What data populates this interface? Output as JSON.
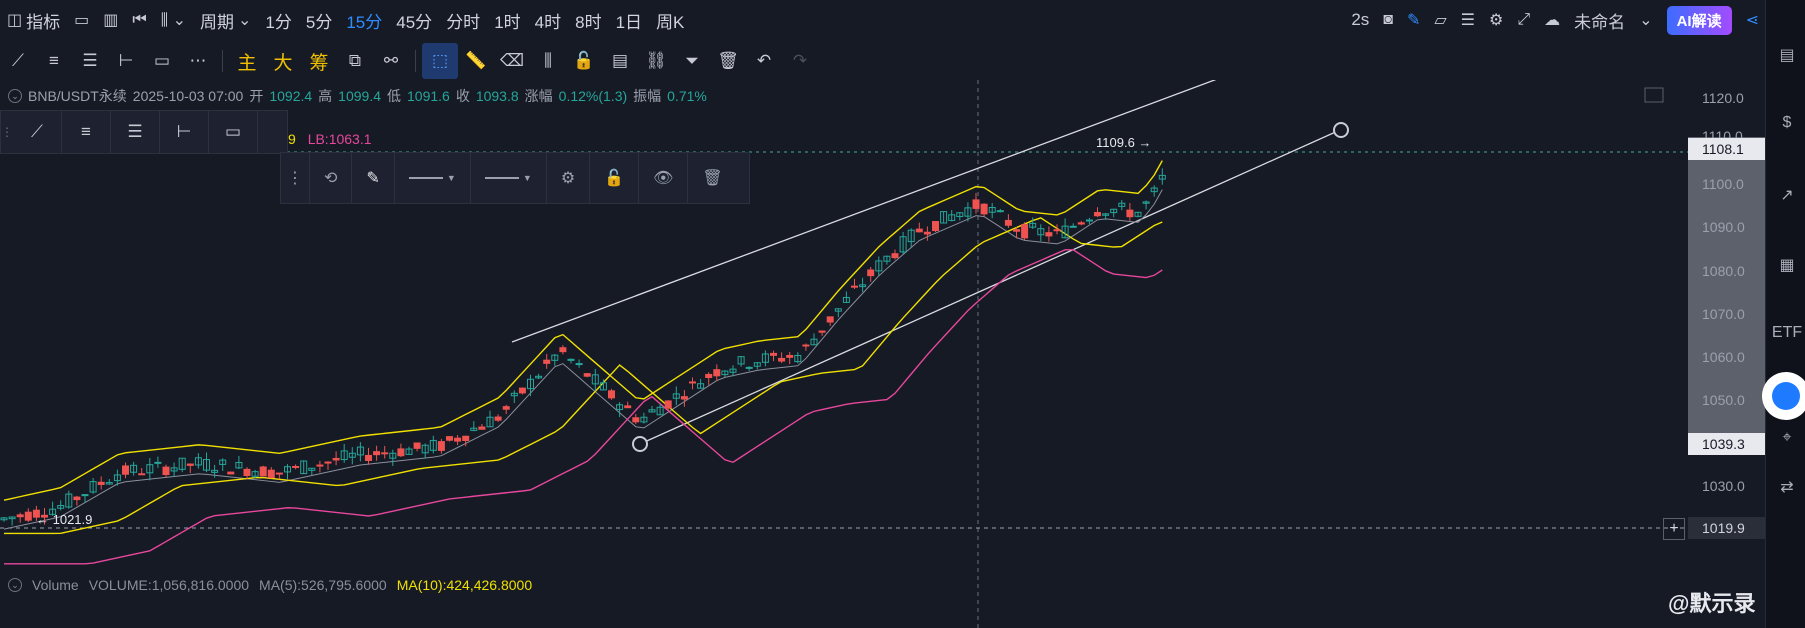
{
  "topbar": {
    "indicators_label": "指标",
    "period_label": "周期",
    "intervals": [
      "1分",
      "5分",
      "15分",
      "45分",
      "分时",
      "1时",
      "4时",
      "8时",
      "1日",
      "周K"
    ],
    "active_interval": "15分",
    "refresh": "2s",
    "layout_name": "未命名",
    "ai_button": "AI解读"
  },
  "drawbar": {
    "main": "主",
    "big": "大",
    "chip": "筹"
  },
  "legend": {
    "symbol": "BNB/USDT永续",
    "datetime": "2025-10-03 07:00",
    "open_label": "开",
    "open": "1092.4",
    "high_label": "高",
    "high": "1099.4",
    "low_label": "低",
    "low": "1091.6",
    "close_label": "收",
    "close": "1093.8",
    "change_label": "涨幅",
    "change": "0.12%(1.3)",
    "amplitude_label": "振幅",
    "amplitude": "0.71%"
  },
  "bb_legend": {
    "num": "9",
    "lb": "LB:1063.1"
  },
  "annotations": {
    "high_marker": "1109.6 →",
    "low_marker": "← 1021.9"
  },
  "price_axis": {
    "ticks": [
      "1120.0",
      "1110.0",
      "1100.0",
      "1090.0",
      "1080.0",
      "1070.0",
      "1060.0",
      "1050.0",
      "1040.0",
      "1030.0",
      "1020.0"
    ],
    "current_price": "1108.1",
    "crosshair_price": "1039.3",
    "hline_price": "1019.9"
  },
  "volume": {
    "label": "Volume",
    "volume": "VOLUME:1,056,816.0000",
    "ma5": "MA(5):526,795.6000",
    "ma10": "MA(10):424,426.8000"
  },
  "watermark": "@默示录",
  "colors": {
    "bull": "#26a69a",
    "bear": "#ef5350",
    "bb_upper": "#f0e000",
    "bb_lower": "#e7479c",
    "accent": "#2f8cff"
  }
}
